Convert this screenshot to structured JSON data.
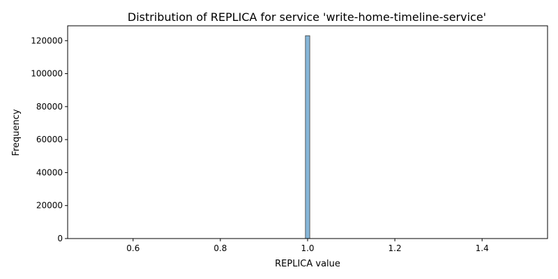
{
  "chart_data": {
    "type": "bar",
    "title": "Distribution of REPLICA for service 'write-home-timeline-service'",
    "xlabel": "REPLICA value",
    "ylabel": "Frequency",
    "xlim": [
      0.45,
      1.55
    ],
    "ylim": [
      0,
      129000
    ],
    "xticks": [
      0.6,
      0.8,
      1.0,
      1.2,
      1.4
    ],
    "xtick_labels": [
      "0.6",
      "0.8",
      "1.0",
      "1.2",
      "1.4"
    ],
    "yticks": [
      0,
      20000,
      40000,
      60000,
      80000,
      100000,
      120000
    ],
    "ytick_labels": [
      "0",
      "20000",
      "40000",
      "60000",
      "80000",
      "100000",
      "120000"
    ],
    "bins": [
      {
        "x0": 0.995,
        "x1": 1.005,
        "count": 123000
      }
    ],
    "grid": false,
    "colors": {
      "bar_fill": "#86b6d8",
      "bar_edge": "#3a3a3a"
    }
  }
}
